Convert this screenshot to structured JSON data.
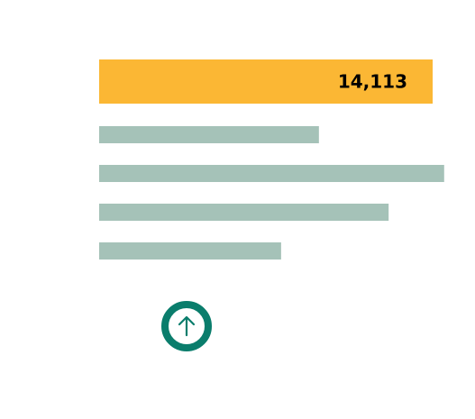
{
  "chart_data": {
    "type": "bar",
    "orientation": "horizontal",
    "highlight_index": 0,
    "values": [
      14113,
      9300,
      14600,
      12250,
      7700
    ],
    "data_labels": [
      "14,113",
      "",
      "",
      "",
      ""
    ],
    "xlim": [
      0,
      15600
    ],
    "colors": {
      "highlight": "#FBB734",
      "default": "#A5C2B8",
      "label": "#000000"
    }
  },
  "controls": {
    "up_button": {
      "icon": "arrow-up-icon",
      "color": "#0A7D6C"
    }
  }
}
